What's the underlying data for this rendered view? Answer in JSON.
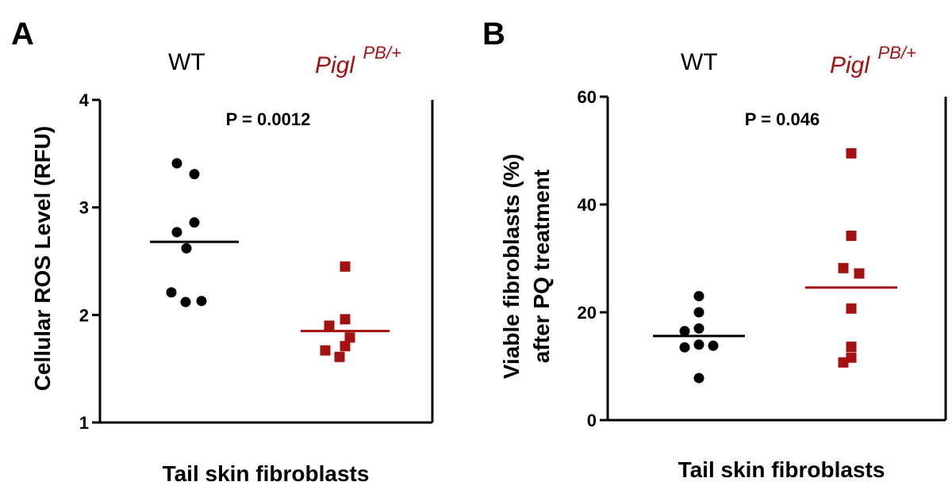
{
  "colors": {
    "wt": "#000000",
    "mutant": "#a31111",
    "axis": "#000000"
  },
  "chart_data": [
    {
      "type": "scatter",
      "panel_label": "A",
      "title": "",
      "group_labels": {
        "wt": "WT",
        "mutant": "Pigl",
        "mutant_superscript": "PB/+"
      },
      "ylabel": "Cellular ROS Level (RFU)",
      "xlabel": "Tail skin fibroblasts",
      "ylim": [
        1,
        4
      ],
      "yticks": [
        1,
        2,
        3,
        4
      ],
      "annotation": "P  = 0.0012",
      "series": [
        {
          "name": "WT",
          "marker": "circle",
          "values": [
            3.41,
            3.31,
            2.86,
            2.77,
            2.62,
            2.21,
            2.12,
            2.13
          ],
          "mean": 2.68
        },
        {
          "name": "Pigl PB/+",
          "marker": "square",
          "values": [
            2.45,
            1.96,
            1.9,
            1.79,
            1.71,
            1.67,
            1.61
          ],
          "mean": 1.85
        }
      ]
    },
    {
      "type": "scatter",
      "panel_label": "B",
      "title": "",
      "group_labels": {
        "wt": "WT",
        "mutant": "Pigl",
        "mutant_superscript": "PB/+"
      },
      "ylabel": "Viable fibroblasts (%)",
      "ylabel2": "after PQ treatment",
      "xlabel": "Tail skin fibroblasts",
      "ylim": [
        0,
        60
      ],
      "yticks": [
        0,
        20,
        40,
        60
      ],
      "annotation": "P  = 0.046",
      "series": [
        {
          "name": "WT",
          "marker": "circle",
          "values": [
            23.0,
            20.0,
            17.0,
            16.5,
            14.0,
            13.8,
            13.5,
            7.8
          ],
          "mean": 15.6
        },
        {
          "name": "Pigl PB/+",
          "marker": "square",
          "values": [
            49.5,
            34.2,
            28.2,
            27.2,
            20.7,
            13.6,
            11.6,
            10.7
          ],
          "mean": 24.6
        }
      ]
    }
  ]
}
